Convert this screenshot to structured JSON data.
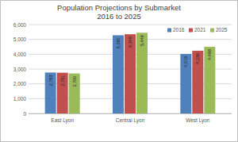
{
  "chart_data": {
    "type": "bar",
    "title": "Population Projections by Submarket",
    "subtitle": "2016 to 2025",
    "categories": [
      "East Lyon",
      "Central Lyon",
      "West Lyon"
    ],
    "series": [
      {
        "name": "2016",
        "color": "#4f81bd",
        "values": [
          2763,
          5280,
          4018
        ],
        "value_labels": [
          "2,763",
          "5,280",
          "4,018"
        ]
      },
      {
        "name": "2021",
        "color": "#c0504d",
        "values": [
          2751,
          5349,
          4236
        ],
        "value_labels": [
          "2,751",
          "5,349",
          "4,236"
        ]
      },
      {
        "name": "2025",
        "color": "#9bbb59",
        "values": [
          2700,
          5448,
          4498
        ],
        "value_labels": [
          "2,700",
          "5,448",
          "4,498"
        ]
      }
    ],
    "ylim": [
      0,
      6000
    ],
    "yticks": [
      0,
      {
        "value": 1000,
        "label": "1,000"
      },
      {
        "value": 2000,
        "label": "2,000"
      },
      {
        "value": 3000,
        "label": "3,000"
      },
      {
        "value": 4000,
        "label": "4,000"
      },
      {
        "value": 5000,
        "label": "5,000"
      },
      {
        "value": 6000,
        "label": "6,000"
      }
    ],
    "grid": true,
    "legend": "top-right",
    "data_labels": true
  }
}
